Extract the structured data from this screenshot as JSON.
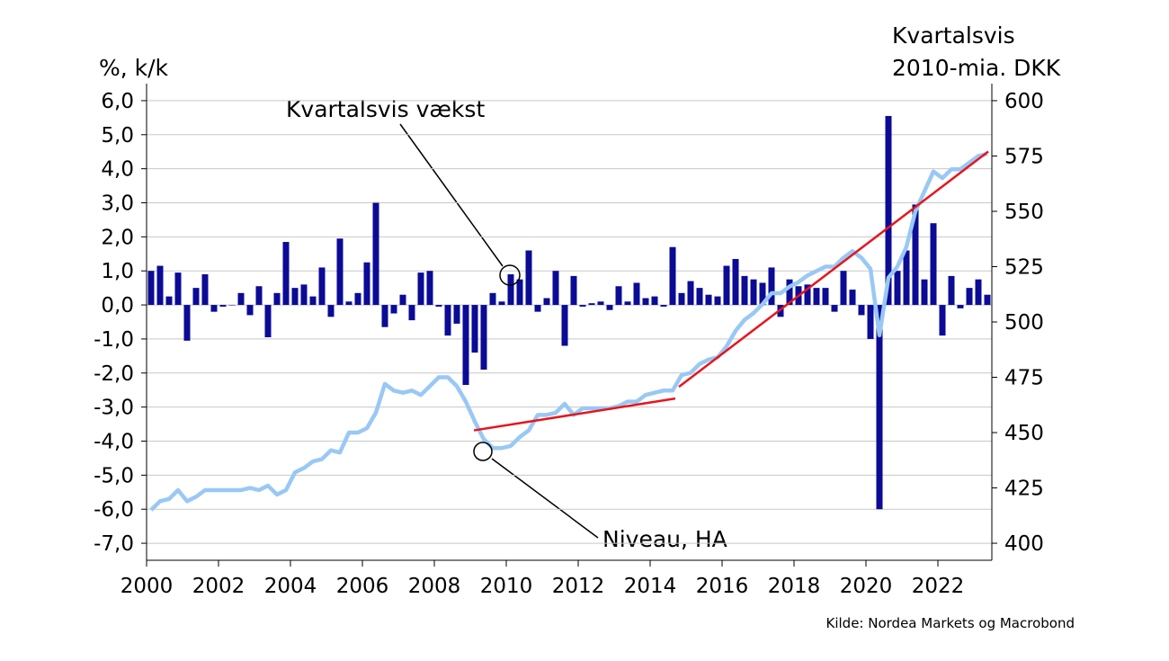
{
  "chart_data": {
    "type": "bar-line",
    "ylabel": "%, k/k",
    "y2label": [
      "Kvartalsvis",
      "2010-mia. DKK"
    ],
    "source": "Kilde: Nordea Markets og Macrobond",
    "annotations": [
      "Kvartalsvis vækst",
      "Niveau, HA"
    ],
    "xlim": [
      2000,
      2023.5
    ],
    "xticks": [
      2000,
      2002,
      2004,
      2006,
      2008,
      2010,
      2012,
      2014,
      2016,
      2018,
      2020,
      2022
    ],
    "ylim": [
      -7.5,
      6.5
    ],
    "yticks": [
      {
        "value": 6,
        "label": "6,0"
      },
      {
        "value": 5,
        "label": "5,0"
      },
      {
        "value": 4,
        "label": "4,0"
      },
      {
        "value": 3,
        "label": "3,0"
      },
      {
        "value": 2,
        "label": "2,0"
      },
      {
        "value": 1,
        "label": "1,0"
      },
      {
        "value": 0,
        "label": "0,0"
      },
      {
        "value": -1,
        "label": "-1,0"
      },
      {
        "value": -2,
        "label": "-2,0"
      },
      {
        "value": -3,
        "label": "-3,0"
      },
      {
        "value": -4,
        "label": "-4,0"
      },
      {
        "value": -5,
        "label": "-5,0"
      },
      {
        "value": -6,
        "label": "-6,0"
      },
      {
        "value": -7,
        "label": "-7,0"
      }
    ],
    "y2lim": [
      392.3,
      607.7
    ],
    "y2ticks": [
      400,
      425,
      450,
      475,
      500,
      525,
      550,
      575,
      600
    ],
    "grid": true,
    "x": [
      2000.125,
      2000.375,
      2000.625,
      2000.875,
      2001.125,
      2001.375,
      2001.625,
      2001.875,
      2002.125,
      2002.375,
      2002.625,
      2002.875,
      2003.125,
      2003.375,
      2003.625,
      2003.875,
      2004.125,
      2004.375,
      2004.625,
      2004.875,
      2005.125,
      2005.375,
      2005.625,
      2005.875,
      2006.125,
      2006.375,
      2006.625,
      2006.875,
      2007.125,
      2007.375,
      2007.625,
      2007.875,
      2008.125,
      2008.375,
      2008.625,
      2008.875,
      2009.125,
      2009.375,
      2009.625,
      2009.875,
      2010.125,
      2010.375,
      2010.625,
      2010.875,
      2011.125,
      2011.375,
      2011.625,
      2011.875,
      2012.125,
      2012.375,
      2012.625,
      2012.875,
      2013.125,
      2013.375,
      2013.625,
      2013.875,
      2014.125,
      2014.375,
      2014.625,
      2014.875,
      2015.125,
      2015.375,
      2015.625,
      2015.875,
      2016.125,
      2016.375,
      2016.625,
      2016.875,
      2017.125,
      2017.375,
      2017.625,
      2017.875,
      2018.125,
      2018.375,
      2018.625,
      2018.875,
      2019.125,
      2019.375,
      2019.625,
      2019.875,
      2020.125,
      2020.375,
      2020.625,
      2020.875,
      2021.125,
      2021.375,
      2021.625,
      2021.875,
      2022.125,
      2022.375,
      2022.625,
      2022.875,
      2023.125,
      2023.375
    ],
    "series": [
      {
        "type": "bar",
        "color": "#0b0b96",
        "values": [
          1.0,
          1.15,
          0.25,
          0.95,
          -1.05,
          0.5,
          0.9,
          -0.2,
          -0.05,
          0.0,
          0.35,
          -0.3,
          0.55,
          -0.95,
          0.35,
          1.85,
          0.5,
          0.6,
          0.25,
          1.1,
          -0.35,
          1.95,
          0.1,
          0.35,
          1.25,
          3.0,
          -0.65,
          -0.25,
          0.3,
          -0.45,
          0.95,
          1.0,
          -0.05,
          -0.9,
          -0.55,
          -2.35,
          -1.4,
          -1.9,
          0.35,
          0.1,
          0.9,
          0.75,
          1.6,
          -0.2,
          0.2,
          1.0,
          -1.2,
          0.85,
          -0.05,
          0.05,
          0.1,
          -0.15,
          0.55,
          0.1,
          0.65,
          0.2,
          0.25,
          -0.05,
          1.7,
          0.35,
          0.7,
          0.5,
          0.3,
          0.25,
          1.15,
          1.35,
          0.85,
          0.75,
          0.65,
          1.1,
          -0.35,
          0.75,
          0.55,
          0.6,
          0.5,
          0.5,
          -0.2,
          1.0,
          0.45,
          -0.3,
          -1.0,
          -6.0,
          5.55,
          1.0,
          1.6,
          2.95,
          0.75,
          2.4,
          -0.9,
          0.85,
          -0.1,
          0.5,
          0.75,
          0.3
        ]
      },
      {
        "type": "line",
        "axis": "y2",
        "color": "#99c8f5",
        "values": [
          415,
          419,
          420,
          424,
          419,
          421,
          424,
          424,
          424,
          424,
          424,
          425,
          424,
          426,
          422,
          424,
          432,
          434,
          437,
          438,
          442,
          441,
          450,
          450,
          452,
          459,
          472,
          469,
          468,
          469,
          467,
          471,
          475,
          475,
          471,
          464,
          455,
          447,
          443,
          443,
          444,
          448,
          451,
          458,
          458,
          459,
          463,
          458,
          461,
          461,
          461,
          461,
          462,
          464,
          464,
          467,
          468,
          469,
          469,
          476,
          477,
          481,
          483,
          484,
          489,
          496,
          501,
          504,
          508,
          513,
          513,
          516,
          518,
          521,
          523,
          525,
          525,
          529,
          532,
          529,
          524,
          494,
          520,
          525,
          534,
          550,
          559,
          568,
          565,
          569,
          569,
          572,
          575,
          576
        ]
      }
    ],
    "trend_color": "#e8141c",
    "trend_lines": [
      {
        "x": [
          2009.1,
          2014.7
        ],
        "values": [
          451,
          465.4
        ]
      },
      {
        "x": [
          2014.8,
          2023.4
        ],
        "values": [
          470.7,
          577
        ]
      }
    ]
  }
}
